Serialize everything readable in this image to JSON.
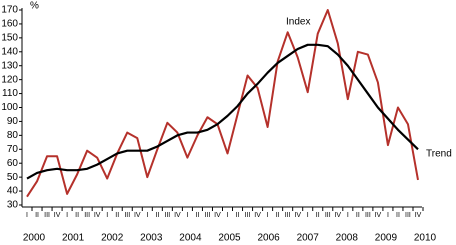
{
  "chart_data": {
    "type": "line",
    "y_unit_label": "%",
    "categories": [
      "I",
      "II",
      "III",
      "IV",
      "I",
      "II",
      "III",
      "IV",
      "I",
      "II",
      "III",
      "IV",
      "I",
      "II",
      "III",
      "IV",
      "I",
      "II",
      "III",
      "IV",
      "I",
      "II",
      "III",
      "IV",
      "I",
      "II",
      "III",
      "IV",
      "I",
      "II",
      "III",
      "IV",
      "I",
      "II",
      "III",
      "IV",
      "I",
      "II",
      "III",
      "IV"
    ],
    "year_labels": [
      "2000",
      "2001",
      "2002",
      "2003",
      "2004",
      "2005",
      "2006",
      "2007",
      "2008",
      "2009",
      "2010"
    ],
    "series": [
      {
        "name": "Index",
        "color": "#b5312b",
        "values": [
          36,
          47,
          65,
          65,
          38,
          52,
          69,
          64,
          49,
          67,
          82,
          78,
          50,
          70,
          89,
          82,
          64,
          80,
          93,
          88,
          67,
          95,
          123,
          114,
          86,
          133,
          154,
          136,
          111,
          153,
          170,
          146,
          106,
          140,
          138,
          118,
          73,
          100,
          88,
          48
        ]
      },
      {
        "name": "Trend",
        "color": "#000000",
        "values": [
          49,
          53,
          55,
          56,
          55,
          55,
          56,
          59,
          63,
          67,
          69,
          69,
          69,
          72,
          76,
          80,
          82,
          82,
          84,
          88,
          94,
          101,
          110,
          117,
          125,
          132,
          137,
          142,
          145,
          145,
          144,
          138,
          130,
          120,
          110,
          100,
          92,
          84,
          77,
          70
        ]
      }
    ],
    "ylim": [
      30,
      170
    ],
    "yticks": [
      30,
      40,
      50,
      60,
      70,
      80,
      90,
      100,
      110,
      120,
      130,
      140,
      150,
      160,
      170
    ],
    "grid": false
  }
}
